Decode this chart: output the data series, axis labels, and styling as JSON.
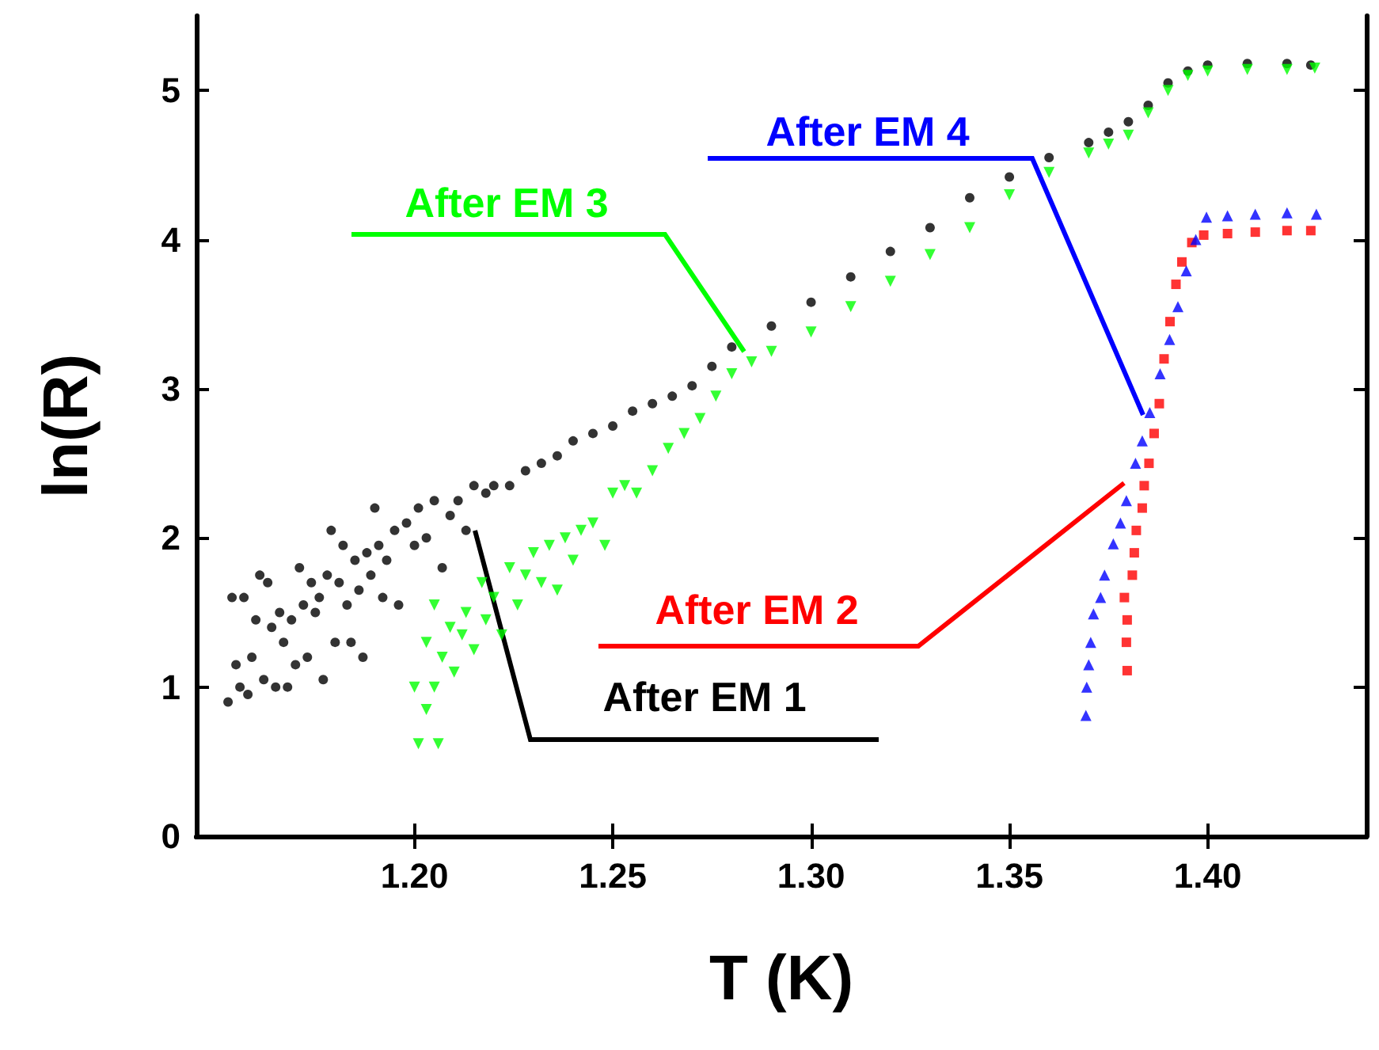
{
  "chart_data": {
    "type": "scatter",
    "xlabel": "T (K)",
    "ylabel": "ln(R)",
    "xlim": [
      1.145,
      1.44
    ],
    "ylim": [
      0,
      5.5
    ],
    "xticks": [
      {
        "value": 1.2,
        "label": "1.20"
      },
      {
        "value": 1.25,
        "label": "1.25"
      },
      {
        "value": 1.3,
        "label": "1.30"
      },
      {
        "value": 1.35,
        "label": "1.35"
      },
      {
        "value": 1.4,
        "label": "1.40"
      }
    ],
    "yticks": [
      0,
      1,
      2,
      3,
      4,
      5
    ],
    "grid": false,
    "legend": false,
    "series": [
      {
        "name": "After EM 1",
        "color": "#000000",
        "marker": "circle",
        "x": [
          1.153,
          1.154,
          1.155,
          1.156,
          1.157,
          1.158,
          1.159,
          1.16,
          1.161,
          1.162,
          1.163,
          1.164,
          1.165,
          1.166,
          1.167,
          1.168,
          1.169,
          1.17,
          1.171,
          1.172,
          1.173,
          1.174,
          1.175,
          1.176,
          1.177,
          1.178,
          1.179,
          1.18,
          1.181,
          1.182,
          1.183,
          1.184,
          1.185,
          1.186,
          1.187,
          1.188,
          1.189,
          1.19,
          1.191,
          1.192,
          1.193,
          1.195,
          1.196,
          1.198,
          1.2,
          1.201,
          1.203,
          1.205,
          1.207,
          1.209,
          1.211,
          1.213,
          1.215,
          1.218,
          1.22,
          1.224,
          1.228,
          1.232,
          1.236,
          1.24,
          1.245,
          1.25,
          1.255,
          1.26,
          1.265,
          1.27,
          1.275,
          1.28,
          1.29,
          1.3,
          1.31,
          1.32,
          1.33,
          1.34,
          1.35,
          1.36,
          1.37,
          1.375,
          1.38,
          1.385,
          1.39,
          1.395,
          1.4,
          1.41,
          1.42,
          1.426
        ],
        "values": [
          0.9,
          1.6,
          1.15,
          1.0,
          1.6,
          0.95,
          1.2,
          1.45,
          1.75,
          1.05,
          1.7,
          1.4,
          1.0,
          1.5,
          1.3,
          1.0,
          1.45,
          1.15,
          1.8,
          1.55,
          1.2,
          1.7,
          1.5,
          1.6,
          1.05,
          1.75,
          2.05,
          1.3,
          1.7,
          1.95,
          1.55,
          1.3,
          1.85,
          1.65,
          1.2,
          1.9,
          1.75,
          2.2,
          1.95,
          1.6,
          1.85,
          2.05,
          1.55,
          2.1,
          1.95,
          2.2,
          2.0,
          2.25,
          1.8,
          2.15,
          2.25,
          2.05,
          2.35,
          2.3,
          2.35,
          2.35,
          2.45,
          2.5,
          2.55,
          2.65,
          2.7,
          2.75,
          2.85,
          2.9,
          2.95,
          3.02,
          3.15,
          3.28,
          3.42,
          3.58,
          3.75,
          3.92,
          4.08,
          4.28,
          4.42,
          4.55,
          4.65,
          4.72,
          4.79,
          4.9,
          5.05,
          5.13,
          5.17,
          5.18,
          5.18,
          5.17
        ]
      },
      {
        "name": "After EM 2",
        "color": "#ff0000",
        "marker": "square",
        "x": [
          1.3797,
          1.3795,
          1.3797,
          1.379,
          1.381,
          1.3815,
          1.382,
          1.3835,
          1.384,
          1.3852,
          1.3865,
          1.3878,
          1.389,
          1.3905,
          1.392,
          1.3935,
          1.396,
          1.399,
          1.405,
          1.412,
          1.42,
          1.426
        ],
        "values": [
          1.11,
          1.3,
          1.45,
          1.6,
          1.75,
          1.9,
          2.05,
          2.2,
          2.35,
          2.5,
          2.7,
          2.9,
          3.2,
          3.45,
          3.7,
          3.85,
          3.98,
          4.03,
          4.04,
          4.05,
          4.06,
          4.06
        ]
      },
      {
        "name": "After EM 3",
        "color": "#00ff00",
        "marker": "triangle-down",
        "x": [
          1.2,
          1.201,
          1.203,
          1.205,
          1.206,
          1.203,
          1.205,
          1.207,
          1.209,
          1.21,
          1.212,
          1.213,
          1.215,
          1.217,
          1.218,
          1.22,
          1.222,
          1.224,
          1.226,
          1.228,
          1.23,
          1.232,
          1.234,
          1.236,
          1.238,
          1.24,
          1.242,
          1.245,
          1.248,
          1.25,
          1.253,
          1.256,
          1.26,
          1.264,
          1.268,
          1.272,
          1.276,
          1.28,
          1.285,
          1.29,
          1.3,
          1.31,
          1.32,
          1.33,
          1.34,
          1.35,
          1.36,
          1.37,
          1.375,
          1.38,
          1.385,
          1.39,
          1.395,
          1.4,
          1.41,
          1.42,
          1.427
        ],
        "values": [
          1.0,
          0.62,
          0.85,
          1.0,
          0.62,
          1.3,
          1.55,
          1.2,
          1.4,
          1.1,
          1.35,
          1.5,
          1.25,
          1.7,
          1.45,
          1.6,
          1.35,
          1.8,
          1.55,
          1.75,
          1.9,
          1.7,
          1.95,
          1.65,
          2.0,
          1.85,
          2.05,
          2.1,
          1.95,
          2.3,
          2.35,
          2.3,
          2.45,
          2.6,
          2.7,
          2.8,
          2.95,
          3.1,
          3.18,
          3.25,
          3.38,
          3.55,
          3.72,
          3.9,
          4.08,
          4.3,
          4.45,
          4.58,
          4.64,
          4.7,
          4.85,
          5.0,
          5.1,
          5.13,
          5.14,
          5.14,
          5.15
        ]
      },
      {
        "name": "After EM 4",
        "color": "#0000ff",
        "marker": "triangle",
        "x": [
          1.3693,
          1.3695,
          1.37,
          1.3705,
          1.3712,
          1.373,
          1.374,
          1.3762,
          1.378,
          1.3795,
          1.3818,
          1.3835,
          1.3854,
          1.388,
          1.3904,
          1.3925,
          1.3946,
          1.397,
          1.3997,
          1.405,
          1.412,
          1.42,
          1.4274
        ],
        "values": [
          0.81,
          1.0,
          1.15,
          1.3,
          1.49,
          1.6,
          1.75,
          1.96,
          2.1,
          2.25,
          2.5,
          2.65,
          2.84,
          3.1,
          3.33,
          3.55,
          3.79,
          4.0,
          4.15,
          4.16,
          4.17,
          4.18,
          4.17
        ]
      }
    ]
  }
}
